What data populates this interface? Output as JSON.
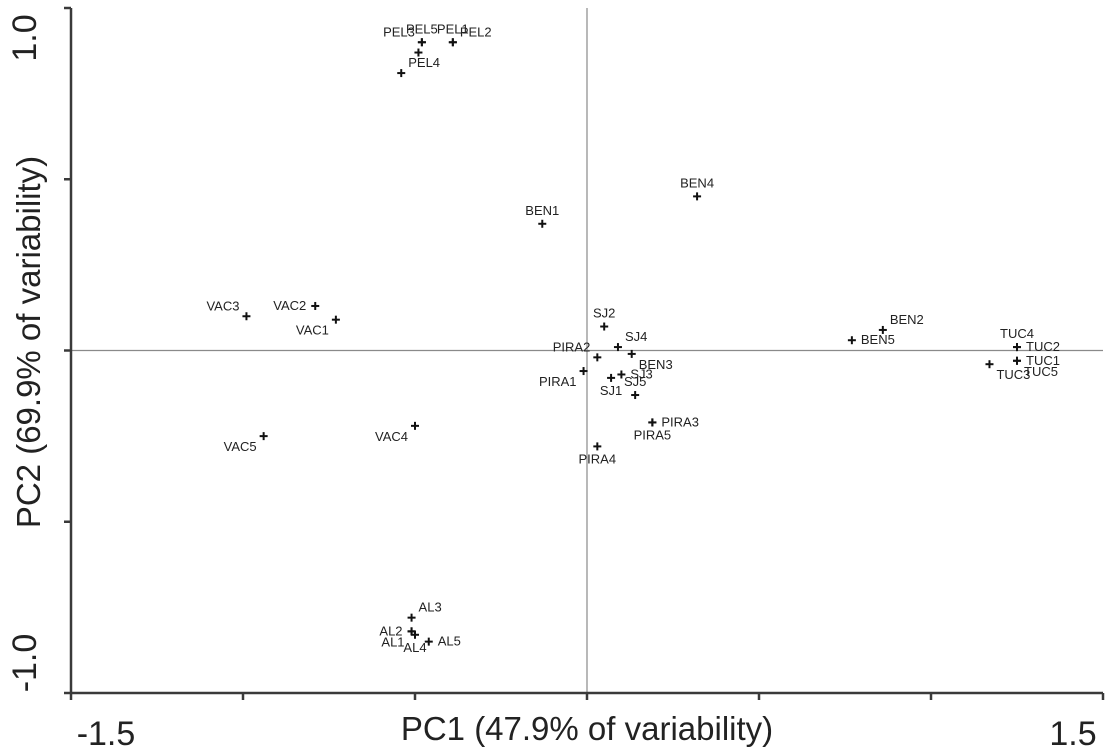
{
  "chart_data": {
    "type": "scatter",
    "xlabel": "PC1 (47.9% of variability)",
    "ylabel": "PC2 (69.9% of variability)",
    "xlim": [
      -1.5,
      1.5
    ],
    "ylim": [
      -1.0,
      1.0
    ],
    "x_tick_labels": [
      {
        "value": -1.5,
        "label": "-1.5"
      },
      {
        "value": 1.5,
        "label": "1.5"
      }
    ],
    "y_tick_labels": [
      {
        "value": -1.0,
        "label": "-1.0"
      },
      {
        "value": 1.0,
        "label": "1.0"
      }
    ],
    "x_ticks": [
      -1.5,
      -1.0,
      -0.5,
      0,
      0.5,
      1.0,
      1.5
    ],
    "y_ticks": [
      -1.0,
      -0.5,
      0,
      0.5,
      1.0
    ],
    "reference_lines": {
      "x": 0,
      "y": 0
    },
    "grid": false,
    "legend": "none",
    "points": [
      {
        "label": "PEL1",
        "x": -0.39,
        "y": 0.9,
        "label_anchor": "n"
      },
      {
        "label": "PEL2",
        "x": -0.39,
        "y": 0.9,
        "label_anchor": "ne"
      },
      {
        "label": "PEL3",
        "x": -0.48,
        "y": 0.9,
        "label_anchor": "nw"
      },
      {
        "label": "PEL4",
        "x": -0.54,
        "y": 0.81,
        "label_anchor": "ne"
      },
      {
        "label": "PEL5",
        "x": -0.48,
        "y": 0.9,
        "label_anchor": "n"
      },
      {
        "label": "_PEL_c",
        "x": -0.49,
        "y": 0.87,
        "label_anchor": "none"
      },
      {
        "label": "BEN1",
        "x": -0.13,
        "y": 0.37,
        "label_anchor": "n"
      },
      {
        "label": "BEN4",
        "x": 0.32,
        "y": 0.45,
        "label_anchor": "n"
      },
      {
        "label": "BEN2",
        "x": 0.86,
        "y": 0.06,
        "label_anchor": "ne"
      },
      {
        "label": "BEN5",
        "x": 0.77,
        "y": 0.03,
        "label_anchor": "e"
      },
      {
        "label": "BEN3",
        "x": 0.13,
        "y": -0.01,
        "label_anchor": "se"
      },
      {
        "label": "VAC1",
        "x": -0.73,
        "y": 0.09,
        "label_anchor": "sw"
      },
      {
        "label": "VAC2",
        "x": -0.79,
        "y": 0.13,
        "label_anchor": "w"
      },
      {
        "label": "VAC3",
        "x": -0.99,
        "y": 0.1,
        "label_anchor": "nw"
      },
      {
        "label": "VAC4",
        "x": -0.5,
        "y": -0.22,
        "label_anchor": "sw"
      },
      {
        "label": "VAC5",
        "x": -0.94,
        "y": -0.25,
        "label_anchor": "sw"
      },
      {
        "label": "SJ1",
        "x": 0.07,
        "y": -0.08,
        "label_anchor": "s"
      },
      {
        "label": "SJ2",
        "x": 0.05,
        "y": 0.07,
        "label_anchor": "n"
      },
      {
        "label": "SJ3",
        "x": 0.1,
        "y": -0.07,
        "label_anchor": "e"
      },
      {
        "label": "SJ4",
        "x": 0.09,
        "y": 0.01,
        "label_anchor": "ne"
      },
      {
        "label": "SJ5",
        "x": 0.14,
        "y": -0.13,
        "label_anchor": "n"
      },
      {
        "label": "PIRA1",
        "x": -0.01,
        "y": -0.06,
        "label_anchor": "sw"
      },
      {
        "label": "PIRA2",
        "x": 0.03,
        "y": -0.02,
        "label_anchor": "nw"
      },
      {
        "label": "PIRA3",
        "x": 0.19,
        "y": -0.21,
        "label_anchor": "e"
      },
      {
        "label": "PIRA4",
        "x": 0.03,
        "y": -0.28,
        "label_anchor": "s"
      },
      {
        "label": "PIRA5",
        "x": 0.19,
        "y": -0.21,
        "label_anchor": "s"
      },
      {
        "label": "TUC1",
        "x": 1.25,
        "y": -0.03,
        "label_anchor": "e"
      },
      {
        "label": "TUC2",
        "x": 1.25,
        "y": 0.01,
        "label_anchor": "e"
      },
      {
        "label": "TUC3",
        "x": 1.17,
        "y": -0.04,
        "label_anchor": "se"
      },
      {
        "label": "TUC4",
        "x": 1.25,
        "y": 0.01,
        "label_anchor": "n"
      },
      {
        "label": "TUC5",
        "x": 1.25,
        "y": -0.03,
        "label_anchor": "se"
      },
      {
        "label": "AL1",
        "x": -0.51,
        "y": -0.82,
        "label_anchor": "sw"
      },
      {
        "label": "AL2",
        "x": -0.51,
        "y": -0.82,
        "label_anchor": "w"
      },
      {
        "label": "AL3",
        "x": -0.51,
        "y": -0.78,
        "label_anchor": "ne"
      },
      {
        "label": "AL4",
        "x": -0.5,
        "y": -0.83,
        "label_anchor": "s"
      },
      {
        "label": "AL5",
        "x": -0.46,
        "y": -0.85,
        "label_anchor": "e"
      }
    ]
  }
}
